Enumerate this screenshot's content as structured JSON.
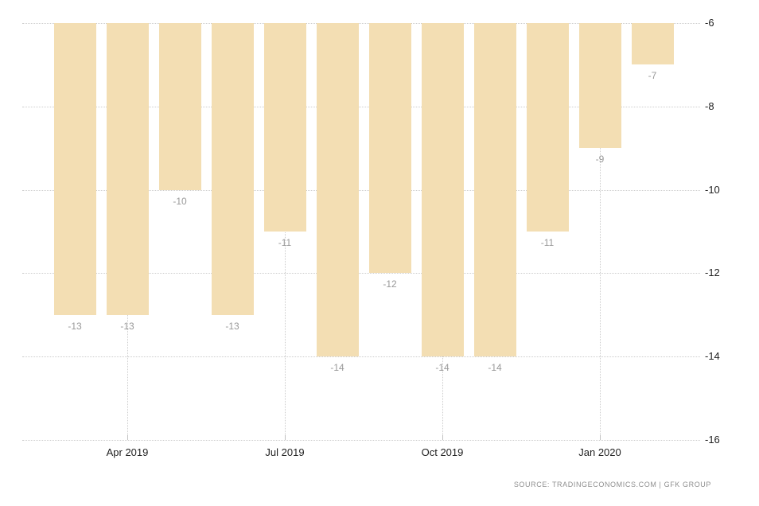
{
  "chart_data": {
    "type": "bar",
    "title": "",
    "values": [
      -13,
      -13,
      -10,
      -13,
      -11,
      -14,
      -12,
      -14,
      -14,
      -11,
      -9,
      -7
    ],
    "data_labels": [
      "-13",
      "-13",
      "-10",
      "-13",
      "-11",
      "-14",
      "-12",
      "-14",
      "-14",
      "-11",
      "-9",
      "-7"
    ],
    "x_tick_labels": [
      "Apr 2019",
      "Jul 2019",
      "Oct 2019",
      "Jan 2020"
    ],
    "x_tick_bar_indexes": [
      1,
      4,
      7,
      10
    ],
    "y_ticks": [
      -6,
      -8,
      -10,
      -12,
      -14,
      -16
    ],
    "y_tick_labels": [
      "-6",
      "-8",
      "-10",
      "-12",
      "-14",
      "-16"
    ],
    "ylim": [
      -16,
      -6
    ],
    "grid": "dotted",
    "legend_position": "none",
    "colors": {
      "bar": "#f3deb3",
      "gridline": "#cccccc",
      "axis_label": "#222222",
      "data_label": "#999999",
      "source_text": "#8f8f8f",
      "background": "#ffffff"
    }
  },
  "source": {
    "text": "SOURCE: TRADINGECONOMICS.COM | GFK GROUP"
  }
}
